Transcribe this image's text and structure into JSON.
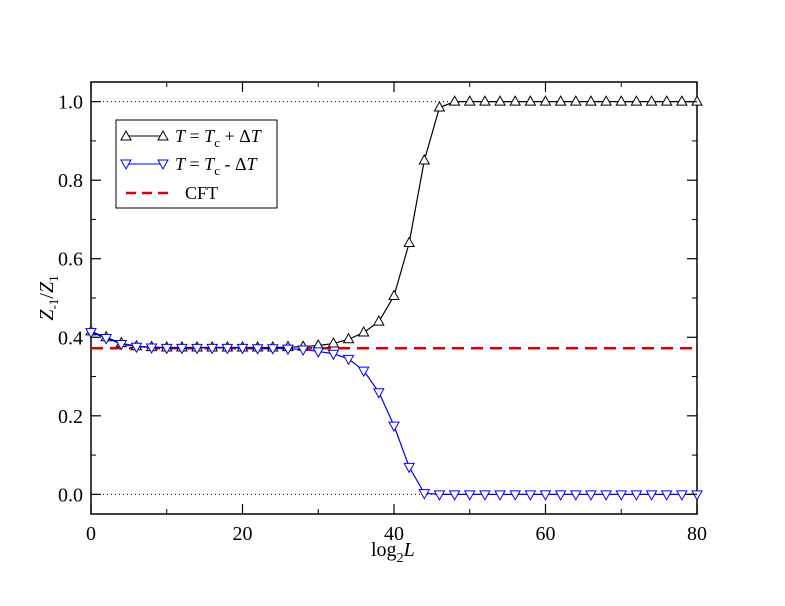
{
  "chart_data": {
    "type": "line",
    "xlabel": {
      "main": "log",
      "sub": "2",
      "var": "L"
    },
    "ylabel": {
      "z1": "Z",
      "sub1": "-1",
      "slash": "/",
      "z2": "Z",
      "sub2": "1"
    },
    "xlim": [
      0,
      80
    ],
    "ylim": [
      -0.05,
      1.05
    ],
    "xticks": [
      0,
      20,
      40,
      60,
      80
    ],
    "xtick_labels": [
      "0",
      "20",
      "40",
      "60",
      "80"
    ],
    "yticks": [
      0.0,
      0.2,
      0.4,
      0.6,
      0.8,
      1.0
    ],
    "ytick_labels": [
      "0.0",
      "0.2",
      "0.4",
      "0.6",
      "0.8",
      "1.0"
    ],
    "reference_lines": [
      0.0,
      1.0
    ],
    "cft_value": 0.372,
    "legend": [
      {
        "name": "above",
        "label_T": "T",
        "label_eq": " = ",
        "label_T2": "T",
        "label_sub": "c",
        "label_op": " + Δ",
        "label_T3": "T"
      },
      {
        "name": "below",
        "label_T": "T",
        "label_eq": " = ",
        "label_T2": "T",
        "label_sub": "c",
        "label_op": " - Δ",
        "label_T3": "T"
      },
      {
        "name": "cft",
        "label": "CFT"
      }
    ],
    "series": [
      {
        "name": "T = Tc + ΔT",
        "color": "#000000",
        "marker": "triangle-up",
        "x": [
          0,
          2,
          4,
          6,
          8,
          10,
          12,
          14,
          16,
          18,
          20,
          22,
          24,
          26,
          28,
          30,
          32,
          34,
          36,
          38,
          40,
          42,
          44,
          46,
          48,
          50,
          52,
          54,
          56,
          58,
          60,
          62,
          64,
          66,
          68,
          70,
          72,
          74,
          76,
          78,
          80
        ],
        "y": [
          0.415,
          0.4,
          0.385,
          0.377,
          0.375,
          0.374,
          0.374,
          0.374,
          0.374,
          0.374,
          0.374,
          0.374,
          0.374,
          0.375,
          0.376,
          0.379,
          0.384,
          0.395,
          0.412,
          0.44,
          0.505,
          0.64,
          0.85,
          0.985,
          1.0,
          1.0,
          1.0,
          1.0,
          1.0,
          1.0,
          1.0,
          1.0,
          1.0,
          1.0,
          1.0,
          1.0,
          1.0,
          1.0,
          1.0,
          1.0,
          1.0
        ]
      },
      {
        "name": "T = Tc - ΔT",
        "color": "#0000ff",
        "marker": "triangle-down",
        "x": [
          0,
          2,
          4,
          6,
          8,
          10,
          12,
          14,
          16,
          18,
          20,
          22,
          24,
          26,
          28,
          30,
          32,
          34,
          36,
          38,
          40,
          42,
          44,
          46,
          48,
          50,
          52,
          54,
          56,
          58,
          60,
          62,
          64,
          66,
          68,
          70,
          72,
          74,
          76,
          78,
          80
        ],
        "y": [
          0.413,
          0.398,
          0.383,
          0.376,
          0.374,
          0.373,
          0.373,
          0.373,
          0.373,
          0.373,
          0.373,
          0.372,
          0.372,
          0.371,
          0.369,
          0.364,
          0.358,
          0.345,
          0.315,
          0.26,
          0.175,
          0.07,
          0.003,
          0.0,
          0.0,
          0.0,
          0.0,
          0.0,
          0.0,
          0.0,
          0.0,
          0.0,
          0.0,
          0.0,
          0.0,
          0.0,
          0.0,
          0.0,
          0.0,
          0.0,
          0.0
        ]
      }
    ],
    "cft_color": "#dd0000"
  }
}
